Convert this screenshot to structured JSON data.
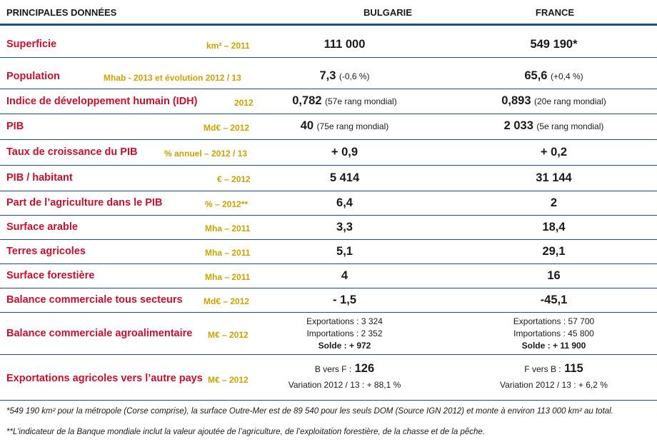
{
  "header": {
    "col0": "PRINCIPALES DONNÉES",
    "col1": "BULGARIE",
    "col2": "FRANCE"
  },
  "rows": [
    {
      "label": "Superficie",
      "unit": "km² – 2011",
      "bg": "111 000",
      "fr": "549 190*"
    },
    {
      "label": "Population",
      "unit": "Mhab - 2013 et évolution 2012 / 13",
      "bg": "7,3",
      "bg_note": "(-0,6 %)",
      "fr": "65,6",
      "fr_note": "(+0,4 %)"
    },
    {
      "label": "Indice de développement humain (IDH)",
      "unit": "2012",
      "bg": "0,782",
      "bg_note": "(57e rang mondial)",
      "fr": "0,893",
      "fr_note": "(20e rang mondial)"
    },
    {
      "label": "PIB",
      "unit": "Md€ – 2012",
      "bg": "40",
      "bg_note": "(75e rang mondial)",
      "fr": "2 033",
      "fr_note": "(5e rang mondial)"
    },
    {
      "label": "Taux de croissance du PIB",
      "unit": "% annuel – 2012 / 13",
      "bg": "+ 0,9",
      "fr": "+ 0,2"
    },
    {
      "label": "PIB / habitant",
      "unit": "€ – 2012",
      "bg": "5 414",
      "fr": "31 144"
    },
    {
      "label": "Part de l’agriculture dans le PIB",
      "unit": "% – 2012**",
      "bg": "6,4",
      "fr": "2"
    },
    {
      "label": "Surface arable",
      "unit": "Mha – 2011",
      "bg": "3,3",
      "fr": "18,4"
    },
    {
      "label": "Terres agricoles",
      "unit": "Mha – 2011",
      "bg": "5,1",
      "fr": "29,1"
    },
    {
      "label": "Surface forestière",
      "unit": "Mha – 2011",
      "bg": "4",
      "fr": "16"
    },
    {
      "label": "Balance commerciale tous secteurs",
      "unit": "Md€ – 2012",
      "bg": "- 1,5",
      "fr": "-45,1"
    }
  ],
  "agro": {
    "label": "Balance commerciale agroalimentaire",
    "unit": "M€ – 2012",
    "bg_exp": "Exportations : 3 324",
    "bg_imp": "Importations : 2 352",
    "bg_sol": "Solde : + 972",
    "fr_exp": "Exportations : 57 700",
    "fr_imp": "Importations : 45 800",
    "fr_sol": "Solde : + 11 900"
  },
  "exports": {
    "label": "Exportations agricoles vers l’autre pays",
    "unit": "M€ – 2012",
    "bg_prefix": "B vers F :",
    "bg_val": "126",
    "bg_var": "Variation 2012 / 13 : + 88,1 %",
    "fr_prefix": "F vers B :",
    "fr_val": "115",
    "fr_var": "Variation 2012 / 13 : + 6,2 %"
  },
  "footnotes": {
    "f1": "*549 190 km² pour la métropole (Corse comprise), la surface Outre-Mer est de 89 540 pour les seuls DOM (Source IGN 2012) et monte à environ 113 000 km² au total.",
    "f2": "**L’indicateur de la Banque mondiale inclut la valeur ajoutée de l’agriculture, de l’exploitation forestière, de la chasse et de la pêche."
  },
  "colors": {
    "label": "#c8102e",
    "unit": "#c9a300",
    "rule": "#1d4f8c"
  }
}
